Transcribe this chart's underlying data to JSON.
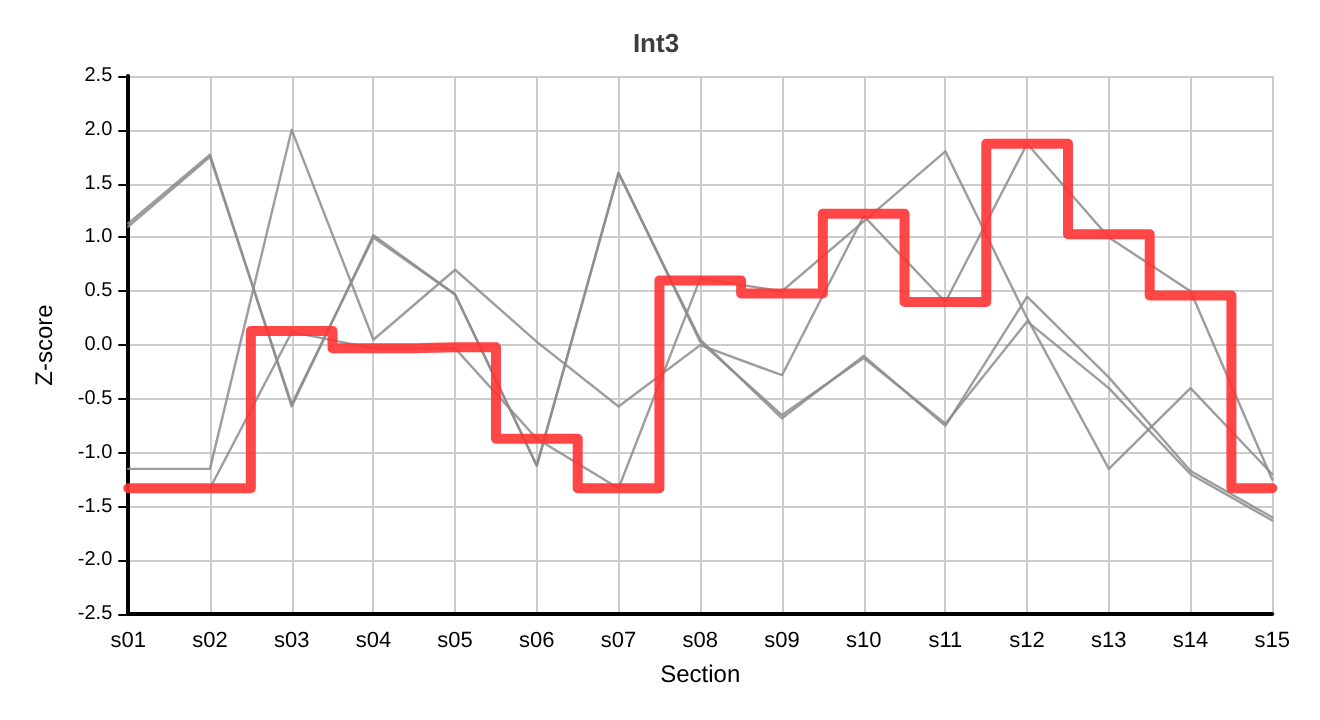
{
  "chart_data": {
    "type": "line",
    "title": "Int3",
    "xlabel": "Section",
    "ylabel": "Z-score",
    "categories": [
      "s01",
      "s02",
      "s03",
      "s04",
      "s05",
      "s06",
      "s07",
      "s08",
      "s09",
      "s10",
      "s11",
      "s12",
      "s13",
      "s14",
      "s15"
    ],
    "series": [
      {
        "color": "#8c8c8c",
        "values": [
          1.1,
          1.75,
          -0.55,
          1.0,
          0.47,
          -1.12,
          1.6,
          0.05,
          -0.68,
          -0.1,
          -0.75,
          0.45,
          -0.3,
          -1.17,
          -1.6
        ]
      },
      {
        "color": "#8c8c8c",
        "values": [
          1.13,
          1.77,
          -0.57,
          1.02,
          0.47,
          -1.12,
          1.6,
          0.03,
          -0.65,
          -0.12,
          -0.73,
          0.22,
          -0.4,
          -1.2,
          -1.63
        ]
      },
      {
        "color": "#8c8c8c",
        "values": [
          -1.15,
          -1.15,
          2.0,
          0.05,
          0.7,
          0.03,
          -0.57,
          0.0,
          -0.28,
          1.2,
          0.4,
          1.87,
          1.0,
          0.5,
          -1.25
        ]
      },
      {
        "color": "#8c8c8c",
        "values": [
          null,
          -1.33,
          0.12,
          -0.03,
          -0.03,
          -0.87,
          -1.33,
          0.62,
          0.5,
          1.15,
          1.8,
          0.25,
          -1.15,
          -0.4,
          -1.2
        ]
      },
      {
        "type": "step",
        "color": "#ff3333",
        "values": [
          -1.33,
          -1.33,
          0.13,
          -0.03,
          -0.02,
          -0.87,
          -1.33,
          0.6,
          0.48,
          1.22,
          0.4,
          1.87,
          1.03,
          0.46,
          -1.33
        ]
      }
    ],
    "ylim": [
      -2.5,
      2.5
    ],
    "yticks": [
      -2.5,
      {
        "value": -2,
        "label": "-2.0"
      },
      -1.5,
      {
        "value": -1,
        "label": "-1.0"
      },
      -0.5,
      {
        "value": 0,
        "label": "0.0"
      },
      0.5,
      {
        "value": 1,
        "label": "1.0"
      },
      1.5,
      {
        "value": 2,
        "label": "2.0"
      },
      2.5
    ],
    "grid": true,
    "marker": "none",
    "line_style": "solid"
  }
}
